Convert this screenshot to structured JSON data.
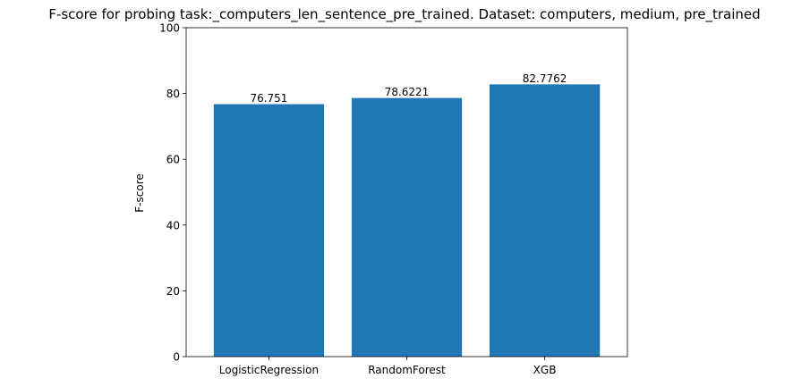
{
  "chart_data": {
    "type": "bar",
    "title": "F-score for probing task:_computers_len_sentence_pre_trained. Dataset: computers, medium, pre_trained",
    "xlabel": "",
    "ylabel": "F-score",
    "categories": [
      "LogisticRegression",
      "RandomForest",
      "XGB"
    ],
    "values": [
      76.751,
      78.6221,
      82.7762
    ],
    "value_labels": [
      "76.751",
      "78.6221",
      "82.7762"
    ],
    "ylim": [
      0,
      100
    ],
    "yticks": [
      0,
      20,
      40,
      60,
      80,
      100
    ],
    "grid": false,
    "legend": "none",
    "bar_color": "#1f77b4"
  }
}
